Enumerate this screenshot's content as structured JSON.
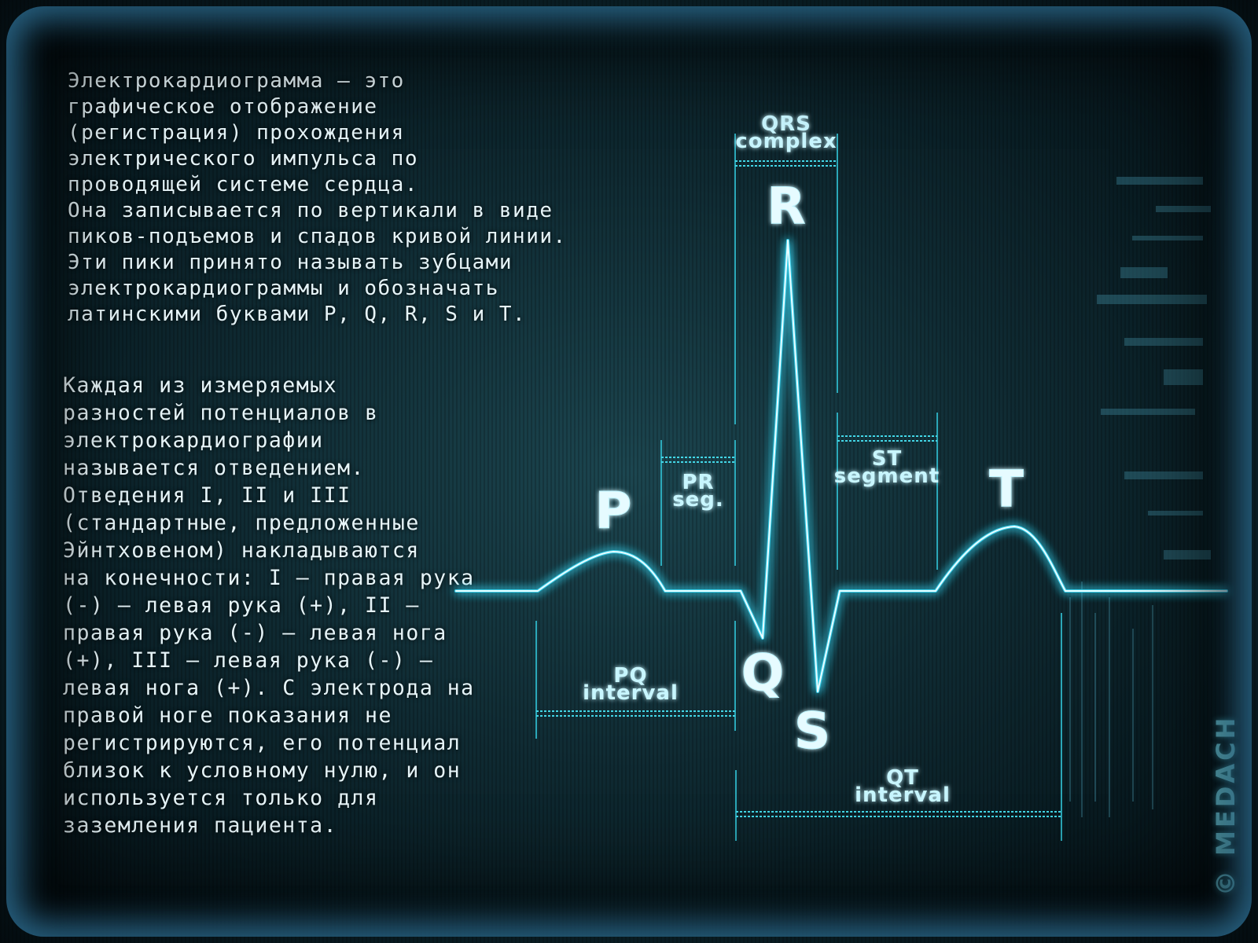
{
  "text": {
    "intro_lines": [
      "Электрокардиограмма – это",
      "графическое отображение",
      "(регистрация) прохождения",
      "электрического импульса по",
      "проводящей системе сердца.",
      "Она записывается по вертикали в виде",
      "пиков-подъемов и спадов кривой линии.",
      "Эти пики принято называть зубцами",
      "электрокардиограммы и обозначать",
      "латинскими буквами P, Q, R, S и T."
    ],
    "leads_lines": [
      "Каждая из измеряемых",
      "разностей потенциалов в",
      "электрокардиографии",
      "называется отведением.",
      "Отведения I, II и III",
      "(стандартные, предложенные",
      "Эйнтховеном) накладываются",
      "на конечности: I — правая рука",
      "(-) — левая рука (+), II —",
      "правая рука (-) — левая нога",
      "(+), III — левая рука (-) —",
      "левая нога (+). С электрода на",
      "правой ноге показания не",
      "регистрируются, его потенциал",
      "близок к условному нулю, и он",
      "используется только для",
      "заземления пациента."
    ]
  },
  "waves": {
    "p": "P",
    "q": "Q",
    "r": "R",
    "s": "S",
    "t": "T"
  },
  "intervals": {
    "qrs_line1": "QRS",
    "qrs_line2": "complex",
    "pr_line1": "PR",
    "pr_line2": "seg.",
    "st_line1": "ST",
    "st_line2": "segment",
    "pq_line1": "PQ",
    "pq_line2": "interval",
    "qt_line1": "QT",
    "qt_line2": "interval"
  },
  "copyright": "© MEDACH",
  "colors": {
    "trace": "#dffaff",
    "trace_glow": "#39d0ec",
    "accent": "#43d6e6"
  }
}
